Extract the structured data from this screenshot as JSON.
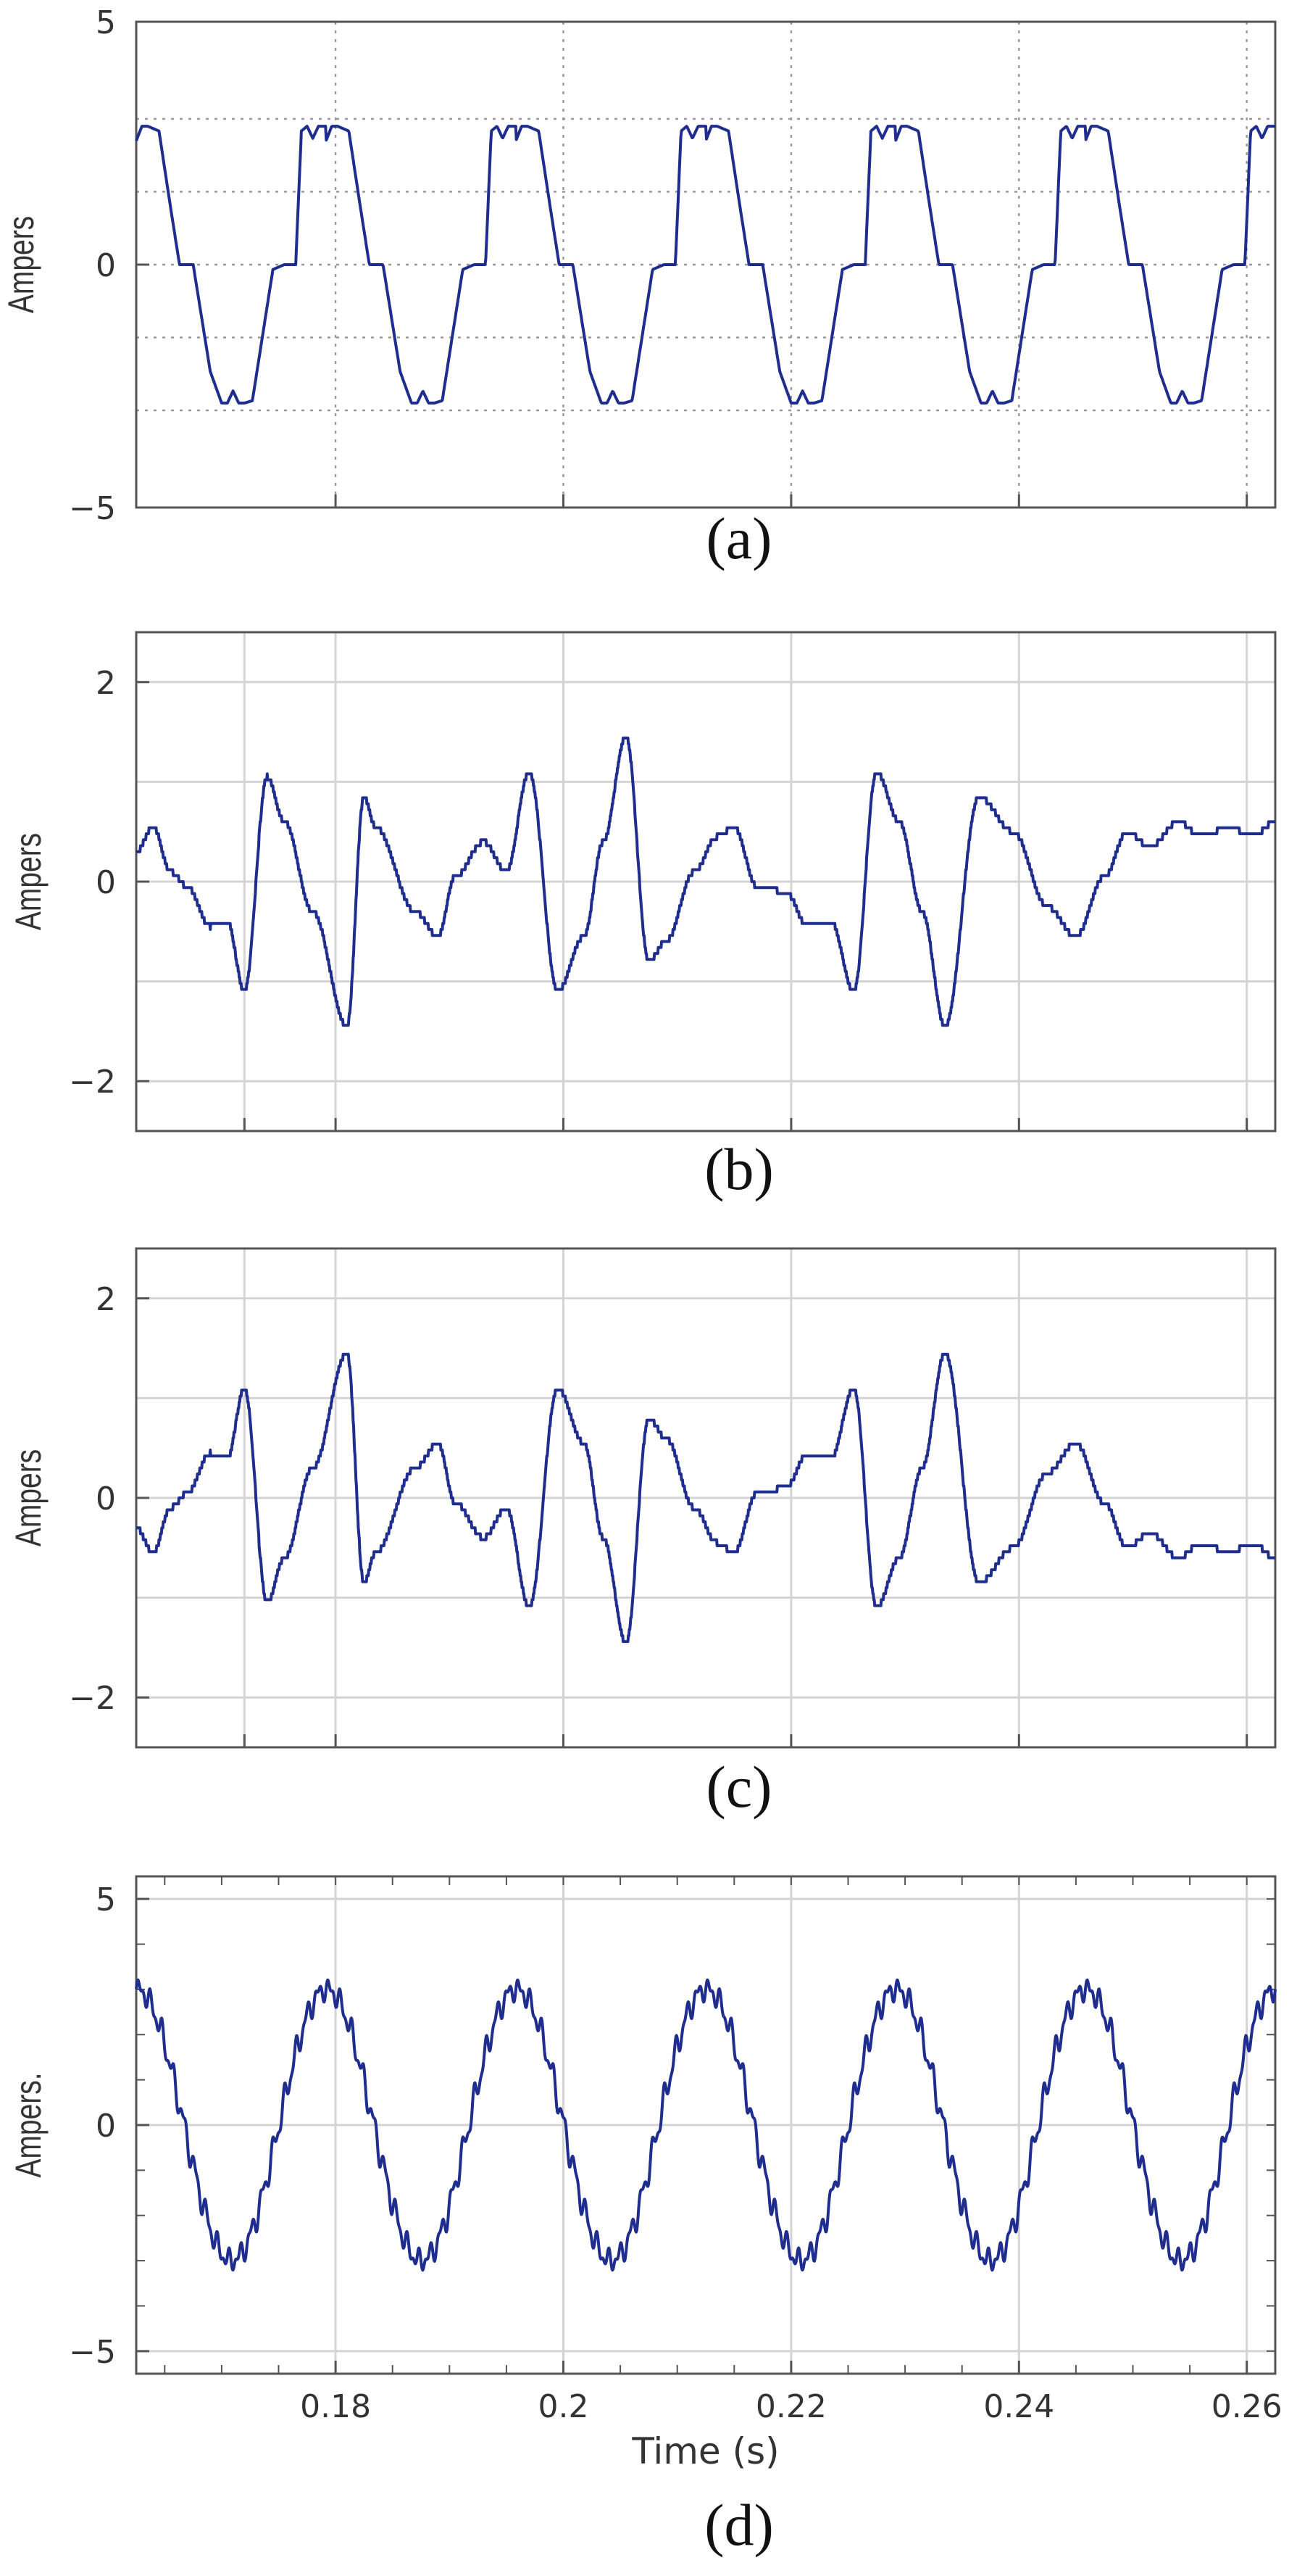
{
  "chart_data": [
    {
      "id": "a",
      "type": "line",
      "caption": "(a)",
      "ylabel": "Ampers",
      "xlabel": "",
      "ylim": [
        -5,
        5
      ],
      "xlim": [
        0.1625,
        0.2625
      ],
      "yticks": [
        -5,
        0,
        5
      ],
      "ytick_labels": [
        "−5",
        "0",
        "5"
      ],
      "xticks": [
        0.18,
        0.2,
        0.22,
        0.24,
        0.26
      ],
      "xtick_labels": [],
      "grid": "dotted",
      "period": 0.016667,
      "phase": 0.0,
      "waveform": "clipped_stepped_square",
      "series": [
        {
          "color": "#1f2d8f",
          "x": [
            0.1625,
            0.163,
            0.1635,
            0.1645,
            0.1655,
            0.1663,
            0.1667,
            0.1675,
            0.169,
            0.17,
            0.1705,
            0.171,
            0.1715,
            0.172,
            0.1727,
            0.1745,
            0.1755,
            0.1765,
            0.177,
            0.1775,
            0.178,
            0.1785,
            0.1792,
            0.1797
          ],
          "values": [
            2.55,
            2.85,
            2.85,
            2.75,
            1.2,
            0.0,
            0.0,
            0.0,
            -2.2,
            -2.85,
            -2.85,
            -2.6,
            -2.85,
            -2.85,
            -2.8,
            -0.1,
            0.0,
            0.0,
            2.75,
            2.85,
            2.6,
            2.85,
            2.85,
            2.55
          ]
        }
      ]
    },
    {
      "id": "b",
      "type": "line",
      "caption": "(b)",
      "ylabel": "Ampers",
      "xlabel": "",
      "ylim": [
        -2.5,
        2.5
      ],
      "xlim": [
        0.1625,
        0.2625
      ],
      "yticks": [
        -2,
        0,
        2
      ],
      "ytick_labels": [
        "−2",
        "0",
        "2"
      ],
      "xticks": [
        0.172,
        0.18,
        0.2,
        0.22,
        0.24,
        0.26
      ],
      "xtick_labels": [],
      "grid": "solid",
      "waveform": "harmonic_distortion",
      "series": [
        {
          "color": "#1f2d8f",
          "x": [
            0.1625,
            0.164,
            0.1655,
            0.167,
            0.169,
            0.1705,
            0.172,
            0.174,
            0.1755,
            0.178,
            0.181,
            0.1825,
            0.1835,
            0.187,
            0.189,
            0.1905,
            0.193,
            0.195,
            0.197,
            0.1995,
            0.2018,
            0.2035,
            0.2055,
            0.2075,
            0.209,
            0.2115,
            0.2135,
            0.215,
            0.217,
            0.2195,
            0.2215,
            0.2235,
            0.2255,
            0.2275,
            0.2295,
            0.2315,
            0.2335,
            0.2365,
            0.2395,
            0.2425,
            0.245,
            0.2475,
            0.2495,
            0.2515,
            0.254,
            0.256,
            0.2585,
            0.2605,
            0.2625
          ],
          "values": [
            0.3,
            0.55,
            0.1,
            -0.05,
            -0.45,
            -0.4,
            -1.1,
            1.05,
            0.6,
            -0.3,
            -1.45,
            0.85,
            0.55,
            -0.3,
            -0.55,
            0.05,
            0.4,
            0.1,
            1.1,
            -1.1,
            -0.55,
            0.4,
            1.45,
            -0.8,
            -0.6,
            0.1,
            0.45,
            0.55,
            -0.05,
            -0.1,
            -0.45,
            -0.4,
            -1.1,
            1.1,
            0.6,
            -0.3,
            -1.45,
            0.85,
            0.5,
            -0.25,
            -0.55,
            0.05,
            0.5,
            0.35,
            0.6,
            0.45,
            0.55,
            0.45,
            0.6
          ]
        }
      ]
    },
    {
      "id": "c",
      "type": "line",
      "caption": "(c)",
      "ylabel": "Ampers",
      "xlabel": "",
      "ylim": [
        -2.5,
        2.5
      ],
      "xlim": [
        0.1625,
        0.2625
      ],
      "yticks": [
        -2,
        0,
        2
      ],
      "ytick_labels": [
        "−2",
        "0",
        "2"
      ],
      "xticks": [
        0.172,
        0.18,
        0.2,
        0.22,
        0.24,
        0.26
      ],
      "xtick_labels": [],
      "grid": "solid",
      "waveform": "harmonic_distortion",
      "series": [
        {
          "color": "#1f2d8f",
          "x": [
            0.1625,
            0.164,
            0.1655,
            0.167,
            0.169,
            0.1705,
            0.172,
            0.174,
            0.1755,
            0.178,
            0.181,
            0.1825,
            0.1835,
            0.187,
            0.189,
            0.1905,
            0.193,
            0.195,
            0.197,
            0.1995,
            0.2018,
            0.2035,
            0.2055,
            0.2075,
            0.209,
            0.2115,
            0.2135,
            0.215,
            0.217,
            0.2195,
            0.2215,
            0.2235,
            0.2255,
            0.2275,
            0.2295,
            0.2315,
            0.2335,
            0.2365,
            0.2395,
            0.2425,
            0.245,
            0.2475,
            0.2495,
            0.2515,
            0.254,
            0.256,
            0.2585,
            0.2605,
            0.2625
          ],
          "values": [
            -0.3,
            -0.55,
            -0.1,
            0.05,
            0.45,
            0.4,
            1.1,
            -1.05,
            -0.6,
            0.3,
            1.45,
            -0.85,
            -0.55,
            0.3,
            0.55,
            -0.05,
            -0.4,
            -0.1,
            -1.1,
            1.1,
            0.55,
            -0.4,
            -1.45,
            0.8,
            0.6,
            -0.1,
            -0.45,
            -0.55,
            0.05,
            0.1,
            0.45,
            0.4,
            1.1,
            -1.1,
            -0.6,
            0.3,
            1.45,
            -0.85,
            -0.5,
            0.25,
            0.55,
            -0.05,
            -0.5,
            -0.35,
            -0.6,
            -0.45,
            -0.55,
            -0.45,
            -0.6
          ]
        }
      ]
    },
    {
      "id": "d",
      "type": "line",
      "caption": "(d)",
      "ylabel": "Ampers.",
      "xlabel": "Time (s)",
      "ylim": [
        -5.5,
        5.5
      ],
      "xlim": [
        0.1625,
        0.2625
      ],
      "yticks": [
        -5,
        0,
        5
      ],
      "ytick_labels": [
        "−5",
        "0",
        "5"
      ],
      "xticks": [
        0.18,
        0.2,
        0.22,
        0.24,
        0.26
      ],
      "xtick_labels": [
        "0.18",
        "0.2",
        "0.22",
        "0.24",
        "0.26"
      ],
      "grid": "solid",
      "waveform": "sinusoid_with_ripple",
      "series": [
        {
          "color": "#1f2d8f",
          "amplitude": 3.0,
          "period": 0.016667,
          "peak_at": 0.1792,
          "ripple_amplitude": 0.25,
          "x": [
            0.1625,
            0.1667,
            0.1708,
            0.175,
            0.1792,
            0.1833,
            0.1875,
            0.1917,
            0.1958,
            0.2,
            0.2042,
            0.2083,
            0.2125,
            0.2167,
            0.2208,
            0.225,
            0.2292,
            0.2333,
            0.2375,
            0.2417,
            0.2458,
            0.25,
            0.2542,
            0.2583,
            0.2625
          ],
          "values": [
            3.0,
            0.0,
            -3.0,
            0.0,
            3.0,
            0.0,
            -3.0,
            0.0,
            3.0,
            0.0,
            -3.0,
            0.0,
            3.0,
            0.0,
            -3.0,
            0.0,
            3.0,
            0.0,
            -3.0,
            0.0,
            3.0,
            0.0,
            -3.0,
            0.0,
            3.0
          ]
        }
      ]
    }
  ]
}
